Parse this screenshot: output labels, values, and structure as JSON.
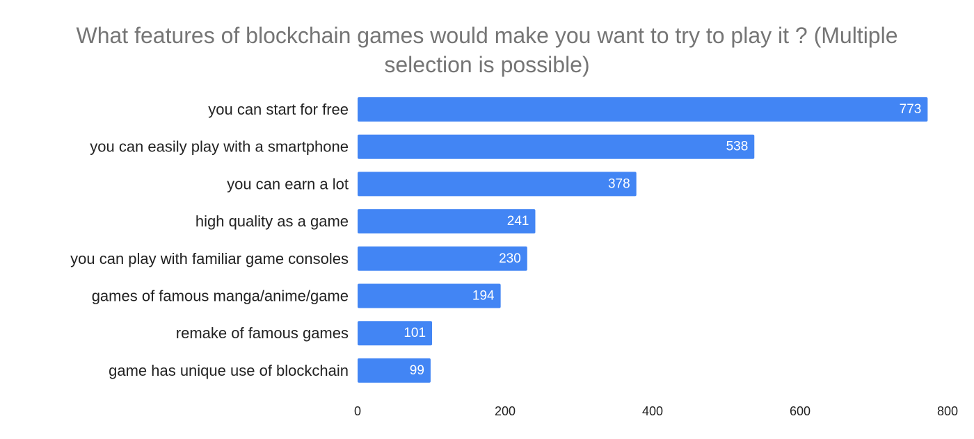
{
  "chart_data": {
    "type": "bar",
    "orientation": "horizontal",
    "title_lines": [
      "What features of blockchain games would make you want to try to play it ? (Multiple",
      "selection is possible)"
    ],
    "categories": [
      "you can start for free",
      "you can easily play with a smartphone",
      "you can earn a lot",
      "high quality as a game",
      "you can play with familiar game consoles",
      "games of famous manga/anime/game",
      "remake of famous games",
      "game has unique use of blockchain"
    ],
    "values": [
      773,
      538,
      378,
      241,
      230,
      194,
      101,
      99
    ],
    "xlim": [
      0,
      800
    ],
    "xticks": [
      0,
      200,
      400,
      600,
      800
    ],
    "xlabel": "",
    "ylabel": "",
    "grid": false,
    "legend": "none",
    "bar_color": "#4285f4",
    "data_labels": true
  }
}
